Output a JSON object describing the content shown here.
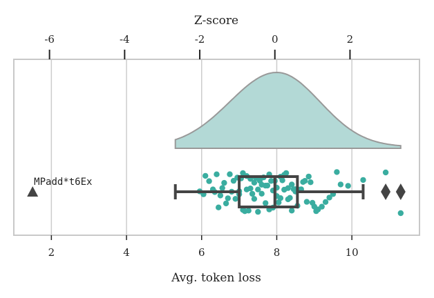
{
  "chart_data": {
    "type": "boxplot",
    "title": "",
    "xlabel": "Avg. token loss",
    "top_xlabel": "Z-score",
    "xlim": [
      1.0,
      11.8
    ],
    "xticks": [
      2,
      4,
      6,
      8,
      10
    ],
    "xtick_labels": [
      "2",
      "4",
      "6",
      "8",
      "10"
    ],
    "z_ticks": [
      -6,
      -4,
      -2,
      0,
      2
    ],
    "z_tick_labels": [
      "-6",
      "-4",
      "-2",
      "0",
      "2"
    ],
    "z_mean": 7.95,
    "z_std": 1.0,
    "grid": "vertical",
    "colors": {
      "density_fill": "#b3d9d6",
      "density_edge": "#999999",
      "points": "#3aada0",
      "box": "#444444",
      "outlier": "#444444",
      "grid": "#cccccc",
      "frame": "#c8c8c8"
    },
    "density": {
      "x_range": [
        5.3,
        11.3
      ],
      "mode": 8.0,
      "left_sigma": 1.25,
      "right_sigma": 1.15
    },
    "box": {
      "whisker_low": 5.3,
      "q1": 7.0,
      "median": 7.95,
      "q3": 8.55,
      "whisker_high": 10.3
    },
    "outliers": [
      10.9,
      11.3
    ],
    "points_x": [
      5.95,
      6.05,
      6.1,
      6.2,
      6.3,
      6.35,
      6.4,
      6.45,
      6.5,
      6.55,
      6.6,
      6.65,
      6.7,
      6.75,
      6.8,
      6.85,
      6.9,
      6.95,
      7.0,
      7.0,
      7.05,
      7.1,
      7.1,
      7.15,
      7.2,
      7.2,
      7.25,
      7.3,
      7.3,
      7.35,
      7.4,
      7.4,
      7.45,
      7.5,
      7.5,
      7.55,
      7.6,
      7.6,
      7.65,
      7.7,
      7.7,
      7.75,
      7.8,
      7.8,
      7.85,
      7.9,
      7.9,
      7.95,
      8.0,
      8.0,
      8.05,
      8.1,
      8.1,
      8.15,
      8.2,
      8.2,
      8.25,
      8.3,
      8.3,
      8.35,
      8.4,
      8.4,
      8.45,
      8.5,
      8.5,
      8.55,
      8.6,
      8.65,
      8.7,
      8.75,
      8.8,
      8.85,
      8.9,
      8.95,
      9.0,
      9.05,
      9.1,
      9.2,
      9.3,
      9.4,
      9.5,
      9.6,
      9.7,
      9.9,
      10.3,
      10.9,
      11.3
    ],
    "annotation": {
      "text": "MPadd*t6Ex",
      "x": 1.5
    }
  }
}
